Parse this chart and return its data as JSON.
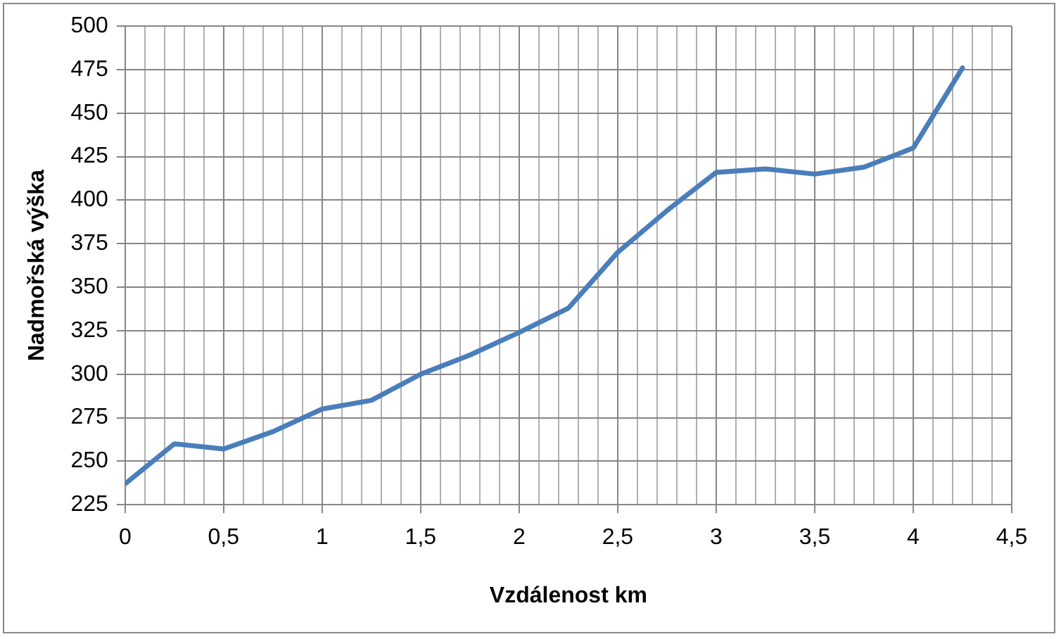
{
  "chart_data": {
    "type": "line",
    "xlabel": "Vzdálenost km",
    "ylabel": "Nadmořská výška",
    "x": [
      0,
      0.25,
      0.5,
      0.75,
      1,
      1.25,
      1.5,
      1.75,
      2,
      2.25,
      2.5,
      2.75,
      3,
      3.25,
      3.5,
      3.75,
      4,
      4.25
    ],
    "series": [
      {
        "color": "#4a7ebb",
        "values": [
          237,
          260,
          257,
          267,
          280,
          285,
          300,
          311,
          324,
          338,
          370,
          394,
          416,
          418,
          415,
          419,
          430,
          476
        ]
      }
    ],
    "xlim": [
      0,
      4.5
    ],
    "xticks": [
      {
        "value": 0,
        "label": "0"
      },
      {
        "value": 0.1,
        "label": null
      },
      {
        "value": 0.2,
        "label": null
      },
      {
        "value": 0.3,
        "label": null
      },
      {
        "value": 0.4,
        "label": null
      },
      {
        "value": 0.5,
        "label": "0,5"
      },
      {
        "value": 0.6,
        "label": null
      },
      {
        "value": 0.7,
        "label": null
      },
      {
        "value": 0.8,
        "label": null
      },
      {
        "value": 0.9,
        "label": null
      },
      {
        "value": 1,
        "label": "1"
      },
      {
        "value": 1.1,
        "label": null
      },
      {
        "value": 1.2,
        "label": null
      },
      {
        "value": 1.3,
        "label": null
      },
      {
        "value": 1.4,
        "label": null
      },
      {
        "value": 1.5,
        "label": "1,5"
      },
      {
        "value": 1.6,
        "label": null
      },
      {
        "value": 1.7,
        "label": null
      },
      {
        "value": 1.8,
        "label": null
      },
      {
        "value": 1.9,
        "label": null
      },
      {
        "value": 2,
        "label": "2"
      },
      {
        "value": 2.1,
        "label": null
      },
      {
        "value": 2.2,
        "label": null
      },
      {
        "value": 2.3,
        "label": null
      },
      {
        "value": 2.4,
        "label": null
      },
      {
        "value": 2.5,
        "label": "2,5"
      },
      {
        "value": 2.6,
        "label": null
      },
      {
        "value": 2.7,
        "label": null
      },
      {
        "value": 2.8,
        "label": null
      },
      {
        "value": 2.9,
        "label": null
      },
      {
        "value": 3,
        "label": "3"
      },
      {
        "value": 3.1,
        "label": null
      },
      {
        "value": 3.2,
        "label": null
      },
      {
        "value": 3.3,
        "label": null
      },
      {
        "value": 3.4,
        "label": null
      },
      {
        "value": 3.5,
        "label": "3,5"
      },
      {
        "value": 3.6,
        "label": null
      },
      {
        "value": 3.7,
        "label": null
      },
      {
        "value": 3.8,
        "label": null
      },
      {
        "value": 3.9,
        "label": null
      },
      {
        "value": 4,
        "label": "4"
      },
      {
        "value": 4.1,
        "label": null
      },
      {
        "value": 4.2,
        "label": null
      },
      {
        "value": 4.3,
        "label": null
      },
      {
        "value": 4.4,
        "label": null
      },
      {
        "value": 4.5,
        "label": "4,5"
      }
    ],
    "ylim": [
      225,
      500
    ],
    "yticks": [
      225,
      250,
      275,
      300,
      325,
      350,
      375,
      400,
      425,
      450,
      475,
      500
    ],
    "grid": true,
    "legend": false,
    "marker": "none",
    "line_style": "solid"
  }
}
